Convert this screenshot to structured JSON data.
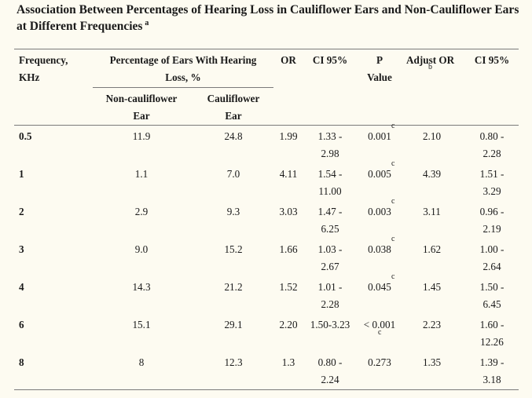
{
  "title": {
    "text": "Association Between Percentages of Hearing Loss in Cauliflower Ears and Non-Cauliflower Ears at Different Frequencies",
    "footnote": "a"
  },
  "headers": {
    "frequency_line1": "Frequency,",
    "frequency_line2": "KHz",
    "percentage_line1": "Percentage of Ears With Hearing",
    "percentage_line2": "Loss, %",
    "or": "OR",
    "ci1": "CI 95%",
    "p_line1": "P",
    "p_line2": "Value",
    "adjust_or": "Adjust OR",
    "adjust_or_footnote": "b",
    "ci2": "CI 95%",
    "non_cauliflower_line1": "Non-cauliflower",
    "non_cauliflower_line2": "Ear",
    "cauliflower_line1": "Cauliflower",
    "cauliflower_line2": "Ear"
  },
  "rows": [
    {
      "freq": "0.5",
      "non": "11.9",
      "caul": "24.8",
      "or": "1.99",
      "ci1_a": "1.33 -",
      "ci1_b": "2.98",
      "p": "0.001",
      "p_sup": "c",
      "aor": "2.10",
      "ci2_a": "0.80 -",
      "ci2_b": "2.28"
    },
    {
      "freq": "1",
      "non": "1.1",
      "caul": "7.0",
      "or": "4.11",
      "ci1_a": "1.54 -",
      "ci1_b": "11.00",
      "p": "0.005",
      "p_sup": "c",
      "aor": "4.39",
      "ci2_a": "1.51 -",
      "ci2_b": "3.29"
    },
    {
      "freq": "2",
      "non": "2.9",
      "caul": "9.3",
      "or": "3.03",
      "ci1_a": "1.47 -",
      "ci1_b": "6.25",
      "p": "0.003",
      "p_sup": "c",
      "aor": "3.11",
      "ci2_a": "0.96 -",
      "ci2_b": "2.19"
    },
    {
      "freq": "3",
      "non": "9.0",
      "caul": "15.2",
      "or": "1.66",
      "ci1_a": "1.03 -",
      "ci1_b": "2.67",
      "p": "0.038",
      "p_sup": "c",
      "aor": "1.62",
      "ci2_a": "1.00 -",
      "ci2_b": "2.64"
    },
    {
      "freq": "4",
      "non": "14.3",
      "caul": "21.2",
      "or": "1.52",
      "ci1_a": "1.01 -",
      "ci1_b": "2.28",
      "p": "0.045",
      "p_sup": "c",
      "aor": "1.45",
      "ci2_a": "1.50 -",
      "ci2_b": "6.45"
    },
    {
      "freq": "6",
      "non": "15.1",
      "caul": "29.1",
      "or": "2.20",
      "ci1_a": "1.50-3.23",
      "ci1_b": "",
      "p": "< 0.001",
      "p_sup": "c",
      "aor": "2.23",
      "ci2_a": "1.60 -",
      "ci2_b": "12.26"
    },
    {
      "freq": "8",
      "non": "8",
      "caul": "12.3",
      "or": "1.3",
      "ci1_a": "0.80 -",
      "ci1_b": "2.24",
      "p": "0.273",
      "p_sup": "",
      "aor": "1.35",
      "ci2_a": "1.39 -",
      "ci2_b": "3.18"
    }
  ]
}
